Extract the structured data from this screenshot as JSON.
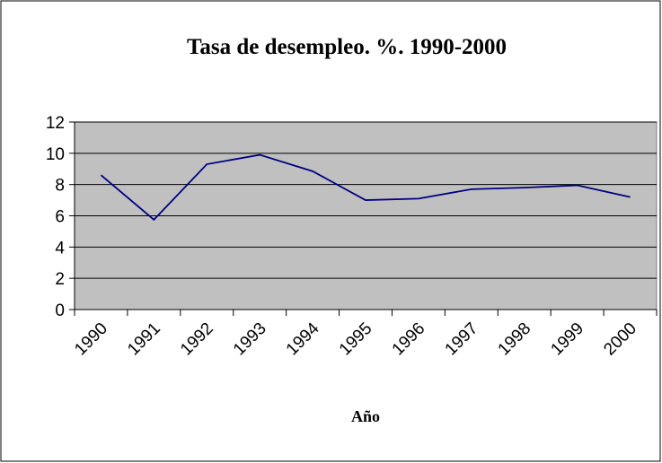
{
  "chart_data": {
    "type": "line",
    "title": "Tasa de desempleo. %. 1990-2000",
    "x_label": "Año",
    "categories": [
      "1990",
      "1991",
      "1992",
      "1993",
      "1994",
      "1995",
      "1996",
      "1997",
      "1998",
      "1999",
      "2000"
    ],
    "series": [
      {
        "name": "Tasa de desempleo",
        "color": "#000080",
        "values": [
          8.6,
          5.75,
          9.3,
          9.9,
          8.85,
          7.0,
          7.1,
          7.7,
          7.8,
          7.95,
          7.2
        ]
      }
    ],
    "ylim": [
      0,
      12
    ],
    "yticks": [
      0,
      2,
      4,
      6,
      8,
      10,
      12
    ],
    "grid": true,
    "plot_background": "#c0c0c0"
  }
}
